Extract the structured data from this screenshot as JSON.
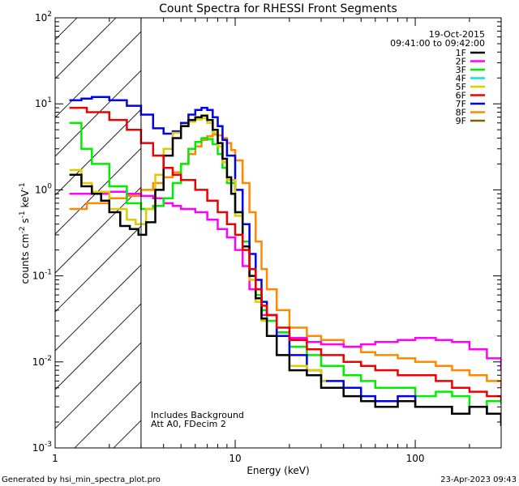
{
  "chart_data": {
    "type": "line",
    "title": "Count Spectra for RHESSI Front Segments",
    "xlabel": "Energy (keV)",
    "ylabel_parts": {
      "a": "counts cm",
      "b": "-2",
      "c": " s",
      "d": "-1",
      "e": " keV",
      "f": "-1"
    },
    "xscale": "log",
    "yscale": "log",
    "xlim": [
      1,
      300
    ],
    "ylim": [
      0.001,
      100
    ],
    "x_ticks": [
      {
        "v": 1,
        "label": "1"
      },
      {
        "v": 10,
        "label": "10"
      },
      {
        "v": 100,
        "label": "100"
      }
    ],
    "y_ticks": [
      {
        "v": 0.001,
        "base": "10",
        "exp": "-3"
      },
      {
        "v": 0.01,
        "base": "10",
        "exp": "-2"
      },
      {
        "v": 0.1,
        "base": "10",
        "exp": "-1"
      },
      {
        "v": 1,
        "base": "10",
        "exp": "0"
      },
      {
        "v": 10,
        "base": "10",
        "exp": "1"
      },
      {
        "v": 100,
        "base": "10",
        "exp": "2"
      }
    ],
    "shaded_region": {
      "x_from": 1,
      "x_to": 3
    },
    "header": {
      "date": "19-Oct-2015",
      "time_range": "09:41:00 to 09:42:00"
    },
    "legend_position": "top-right",
    "annotations": [
      "Includes Background",
      "Att A0, FDecim 2"
    ],
    "series": [
      {
        "name": "1F",
        "color": "#000000",
        "x": [
          1.2,
          1.4,
          1.6,
          1.8,
          2,
          2.3,
          2.6,
          2.9,
          3.2,
          3.6,
          4,
          4.5,
          5,
          5.5,
          6,
          6.5,
          7,
          7.5,
          8,
          8.5,
          9,
          9.5,
          10,
          11,
          12,
          13,
          14,
          15,
          17,
          20,
          25,
          30,
          40,
          50,
          60,
          80,
          100,
          130,
          160,
          200,
          250,
          300
        ],
        "y": [
          1.5,
          1.1,
          0.9,
          0.75,
          0.55,
          0.38,
          0.35,
          0.3,
          0.42,
          1.0,
          2.5,
          4.0,
          5.5,
          6.5,
          7.0,
          7.3,
          6.5,
          5.0,
          3.5,
          2.3,
          1.4,
          0.9,
          0.55,
          0.22,
          0.1,
          0.055,
          0.032,
          0.02,
          0.012,
          0.008,
          0.007,
          0.005,
          0.004,
          0.0035,
          0.003,
          0.0035,
          0.003,
          0.003,
          0.0025,
          0.003,
          0.0025,
          0.0018
        ]
      },
      {
        "name": "2F",
        "color": "#ff00ff",
        "x": [
          1.2,
          1.5,
          2,
          2.5,
          3,
          3.5,
          4,
          4.5,
          5,
          6,
          7,
          8,
          9,
          10,
          11,
          12,
          14,
          17,
          20,
          25,
          30,
          40,
          50,
          60,
          80,
          100,
          130,
          160,
          200,
          250,
          300
        ],
        "y": [
          0.9,
          0.9,
          0.95,
          0.9,
          0.85,
          0.8,
          0.7,
          0.65,
          0.6,
          0.55,
          0.45,
          0.35,
          0.28,
          0.2,
          0.13,
          0.07,
          0.035,
          0.022,
          0.019,
          0.017,
          0.016,
          0.015,
          0.016,
          0.017,
          0.018,
          0.019,
          0.018,
          0.017,
          0.014,
          0.011,
          0.008
        ]
      },
      {
        "name": "3F",
        "color": "#00ee00",
        "x": [
          1.2,
          1.4,
          1.6,
          2,
          2.5,
          3,
          3.5,
          4,
          4.5,
          5,
          5.5,
          6,
          6.5,
          7,
          7.5,
          8,
          8.5,
          9,
          10,
          11,
          12,
          13,
          14,
          15,
          17,
          20,
          25,
          30,
          40,
          50,
          60,
          80,
          100,
          130,
          160,
          200,
          250,
          300
        ],
        "y": [
          6.0,
          3.0,
          2.0,
          1.1,
          0.7,
          0.6,
          0.65,
          0.8,
          1.2,
          2.0,
          3.0,
          3.6,
          4.0,
          3.9,
          3.4,
          2.6,
          1.8,
          1.2,
          0.55,
          0.25,
          0.12,
          0.06,
          0.04,
          0.03,
          0.022,
          0.015,
          0.012,
          0.009,
          0.007,
          0.006,
          0.005,
          0.005,
          0.004,
          0.0045,
          0.004,
          0.003,
          0.0035,
          0.0032
        ]
      },
      {
        "name": "4F",
        "color": "#00e5e5",
        "x": [],
        "y": []
      },
      {
        "name": "5F",
        "color": "#ddcc00",
        "x": [
          1.2,
          1.4,
          1.6,
          2,
          2.5,
          2.8,
          3.2,
          3.6,
          4,
          4.5,
          5,
          5.5,
          6,
          6.5,
          7,
          7.5,
          8,
          8.5,
          9,
          10,
          11,
          12,
          13,
          14,
          15,
          17,
          20,
          25,
          30
        ],
        "y": [
          1.7,
          1.2,
          0.95,
          0.6,
          0.45,
          0.4,
          0.6,
          1.5,
          3.0,
          4.6,
          5.6,
          6.2,
          6.6,
          6.8,
          6.0,
          4.6,
          3.2,
          2.1,
          1.3,
          0.5,
          0.2,
          0.09,
          0.05,
          0.03,
          0.02,
          0.012,
          0.009,
          0.008,
          0.006
        ]
      },
      {
        "name": "6F",
        "color": "#ee0000",
        "x": [
          1.2,
          1.5,
          2,
          2.5,
          3,
          3.5,
          4,
          4.5,
          5,
          6,
          7,
          8,
          9,
          10,
          11,
          12,
          13,
          14,
          15,
          17,
          20,
          25,
          30,
          40,
          50,
          60,
          80,
          100,
          130,
          160,
          200,
          250,
          300
        ],
        "y": [
          9.0,
          8.0,
          6.5,
          5.0,
          3.5,
          2.5,
          1.8,
          1.5,
          1.3,
          1.0,
          0.75,
          0.55,
          0.4,
          0.3,
          0.2,
          0.12,
          0.07,
          0.045,
          0.035,
          0.025,
          0.018,
          0.014,
          0.012,
          0.01,
          0.009,
          0.008,
          0.007,
          0.007,
          0.006,
          0.005,
          0.0045,
          0.004,
          0.0035
        ]
      },
      {
        "name": "7F",
        "color": "#0000ee",
        "x": [
          1.2,
          1.4,
          1.6,
          2,
          2.5,
          3,
          3.5,
          4,
          4.5,
          5,
          5.5,
          6,
          6.5,
          7,
          7.5,
          8,
          8.5,
          9,
          10,
          11,
          12,
          13,
          14,
          15,
          17,
          20,
          25,
          30,
          40,
          50,
          60,
          80,
          100,
          130,
          160,
          200,
          250,
          300
        ],
        "y": [
          11,
          11.5,
          12,
          11,
          9.5,
          7.5,
          5.2,
          4.5,
          4.8,
          6.0,
          7.5,
          8.5,
          9.0,
          8.5,
          7.0,
          5.5,
          3.8,
          2.5,
          1.0,
          0.4,
          0.18,
          0.09,
          0.05,
          0.035,
          0.02,
          0.012,
          0.008,
          0.006,
          0.005,
          0.004,
          0.0035,
          0.004,
          0.003,
          0.003,
          0.0025,
          0.003,
          0.0025,
          0.002
        ]
      },
      {
        "name": "8F",
        "color": "#ff8800",
        "x": [
          1.2,
          1.5,
          2,
          2.5,
          3,
          3.5,
          4,
          4.5,
          5,
          5.5,
          6,
          6.5,
          7,
          7.5,
          8,
          8.5,
          9,
          9.5,
          10,
          11,
          12,
          13,
          14,
          15,
          17,
          20,
          25,
          30,
          40,
          50,
          60,
          80,
          100,
          130,
          160,
          200,
          250,
          300
        ],
        "y": [
          0.6,
          0.7,
          0.8,
          0.85,
          1.0,
          1.2,
          1.4,
          1.6,
          2.0,
          2.6,
          3.2,
          3.8,
          4.2,
          4.4,
          4.3,
          4.0,
          3.5,
          2.9,
          2.2,
          1.2,
          0.55,
          0.25,
          0.12,
          0.07,
          0.04,
          0.025,
          0.02,
          0.018,
          0.015,
          0.013,
          0.012,
          0.011,
          0.01,
          0.009,
          0.008,
          0.007,
          0.006,
          0.005
        ]
      },
      {
        "name": "9F",
        "color": "#806000",
        "x": [],
        "y": []
      }
    ]
  },
  "footer": {
    "left": "Generated by hsi_min_spectra_plot.pro",
    "right": "23-Apr-2023 09:43"
  }
}
